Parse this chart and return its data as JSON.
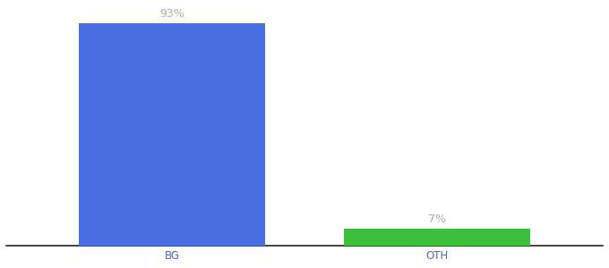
{
  "categories": [
    "BG",
    "OTH"
  ],
  "values": [
    93,
    7
  ],
  "bar_colors": [
    "#4A6FE3",
    "#3DBE3D"
  ],
  "labels": [
    "93%",
    "7%"
  ],
  "ylim": [
    0,
    100
  ],
  "background_color": "#ffffff",
  "bar_width": 0.28,
  "label_fontsize": 9,
  "tick_fontsize": 8.5,
  "label_color": "#aaaaaa",
  "tick_color": "#4466cc",
  "spine_color": "#222222"
}
